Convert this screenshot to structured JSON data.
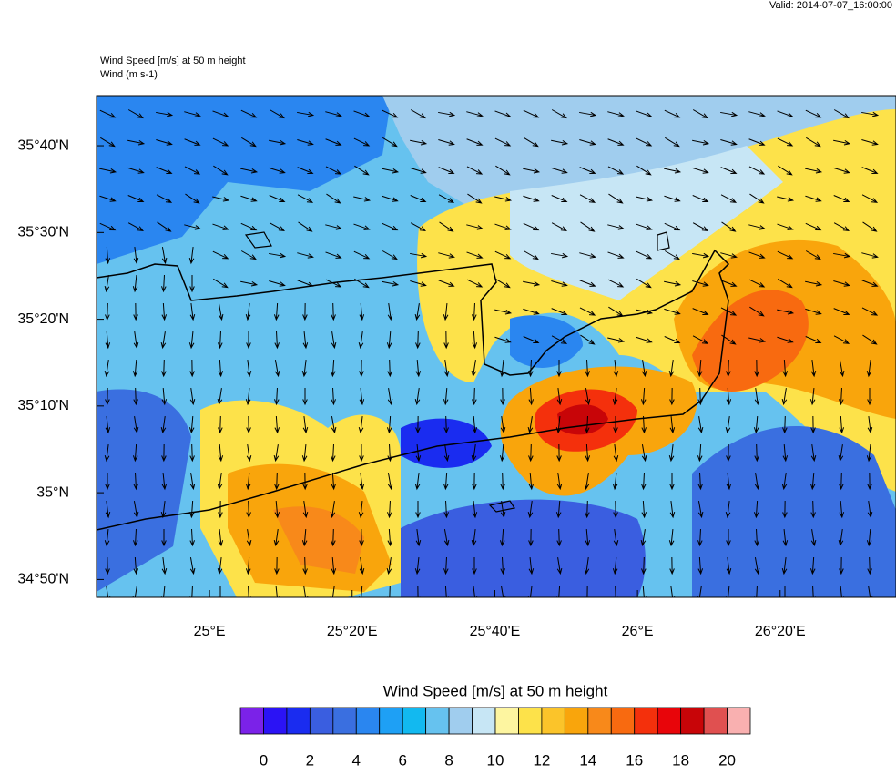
{
  "header": {
    "valid": "Valid: 2014-07-07_16:00:00",
    "field_title": "Wind Speed [m/s] at 50 m height",
    "field_subtitle": "Wind   (m s-1)"
  },
  "map": {
    "lat_range": [
      34.799,
      35.763
    ],
    "lon_range": [
      24.736,
      26.604
    ],
    "lat_ticks": [
      {
        "value": 35.6667,
        "label": "35°40'N"
      },
      {
        "value": 35.5,
        "label": "35°30'N"
      },
      {
        "value": 35.3333,
        "label": "35°20'N"
      },
      {
        "value": 35.1667,
        "label": "35°10'N"
      },
      {
        "value": 35,
        "label": "35°N"
      },
      {
        "value": 34.8333,
        "label": "34°50'N"
      }
    ],
    "lon_ticks": [
      {
        "value": 25,
        "label": "25°E"
      },
      {
        "value": 25.3333,
        "label": "25°20'E"
      },
      {
        "value": 25.6667,
        "label": "25°40'E"
      },
      {
        "value": 26,
        "label": "26°E"
      },
      {
        "value": 26.3333,
        "label": "26°20'E"
      }
    ]
  },
  "colorbar": {
    "title": "Wind Speed [m/s] at 50 m height",
    "range": [
      -1,
      21
    ],
    "colors": [
      "#7b22e8",
      "#2b13f5",
      "#1a2cf0",
      "#3a5ee0",
      "#3a6fe0",
      "#2a86f0",
      "#1ea0f5",
      "#12b9f0",
      "#66c2ef",
      "#a0cdee",
      "#c7e6f5",
      "#fdf5a0",
      "#fde24a",
      "#fbc42a",
      "#f9a50c",
      "#f8891a",
      "#f86a10",
      "#f4300c",
      "#e8050a",
      "#c80508",
      "#e05050",
      "#f9b0b0"
    ],
    "ticks": [
      0,
      2,
      4,
      6,
      8,
      10,
      12,
      14,
      16,
      18,
      20
    ]
  }
}
